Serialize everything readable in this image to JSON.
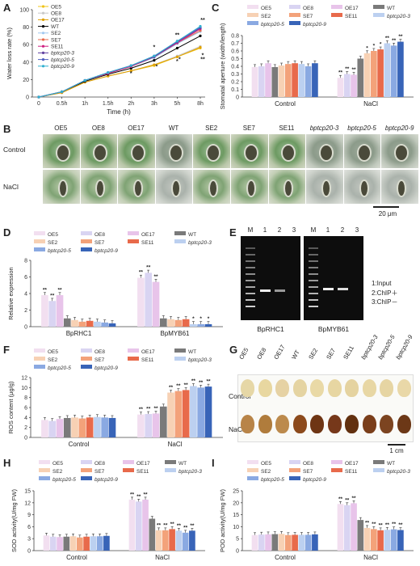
{
  "panels": {
    "A": "A",
    "B": "B",
    "C": "C",
    "D": "D",
    "E": "E",
    "F": "F",
    "G": "G",
    "H": "H",
    "I": "I"
  },
  "lines": [
    "OE5",
    "OE8",
    "OE17",
    "WT",
    "SE2",
    "SE7",
    "SE11",
    "bptcp20-3",
    "bptcp20-5",
    "bptcp20-9"
  ],
  "bars": [
    "OE5",
    "OE8",
    "OE17",
    "WT",
    "SE2",
    "SE7",
    "SE11",
    "bptcp20-3",
    "bptcp20-5",
    "bptcp20-9"
  ],
  "colors": {
    "OE5": "#f2dff0",
    "OE8": "#d9d4f2",
    "OE17": "#e8c4ea",
    "WT": "#7a7a7a",
    "SE2": "#f7d1b4",
    "SE7": "#f3a27a",
    "SE11": "#e86a4b",
    "bptcp20-3": "#bcd0f0",
    "bptcp20-5": "#8aa9e2",
    "bptcp20-9": "#3864b8"
  },
  "line_colors": {
    "OE5": "#f0c419",
    "OE8": "#c8c8c8",
    "OE17": "#e0a000",
    "WT": "#000000",
    "SE2": "#a0c8f0",
    "SE7": "#e86a4b",
    "SE11": "#d02080",
    "bptcp20-3": "#6040a0",
    "bptcp20-5": "#5060c0",
    "bptcp20-9": "#30b0d0"
  },
  "chart_data": [
    {
      "id": "A",
      "type": "line",
      "x": [
        "0",
        "0.5h",
        "1h",
        "1.5h",
        "2h",
        "3h",
        "5h",
        "8h"
      ],
      "xlabel": "Time (h)",
      "ylabel": "Water loss rate (%)",
      "ylim": [
        0,
        100
      ],
      "yticks": [
        "0",
        "20",
        "40",
        "60",
        "80",
        "100"
      ],
      "series": [
        {
          "name": "OE5",
          "values": [
            0,
            5,
            17,
            24,
            30,
            36,
            46,
            56
          ]
        },
        {
          "name": "OE8",
          "values": [
            0,
            5,
            17,
            24,
            30,
            37,
            47,
            58
          ]
        },
        {
          "name": "OE17",
          "values": [
            0,
            5,
            17,
            24,
            30,
            37,
            46,
            57
          ]
        },
        {
          "name": "WT",
          "values": [
            0,
            6,
            18,
            26,
            33,
            42,
            56,
            70
          ]
        },
        {
          "name": "SE2",
          "values": [
            0,
            6,
            19,
            27,
            35,
            45,
            61,
            75
          ]
        },
        {
          "name": "SE7",
          "values": [
            0,
            6,
            19,
            27,
            35,
            46,
            62,
            76
          ]
        },
        {
          "name": "SE11",
          "values": [
            0,
            6,
            19,
            27,
            35,
            46,
            62,
            78
          ]
        },
        {
          "name": "bptcp20-3",
          "values": [
            0,
            6,
            19,
            28,
            36,
            46,
            63,
            79
          ]
        },
        {
          "name": "bptcp20-5",
          "values": [
            0,
            6,
            19,
            28,
            36,
            47,
            64,
            80
          ]
        },
        {
          "name": "bptcp20-9",
          "values": [
            0,
            6,
            19,
            28,
            36,
            47,
            64,
            81
          ]
        }
      ],
      "annotations": [
        "**",
        "**",
        "**",
        "*",
        "*",
        "*",
        "*",
        "*",
        "*"
      ]
    },
    {
      "id": "C",
      "type": "bar",
      "categories": [
        "Control",
        "NaCl"
      ],
      "ylabel": "Stomatal aperture (width/length)",
      "ylim": [
        0,
        0.8
      ],
      "yticks": [
        "0",
        "0.1",
        "0.2",
        "0.3",
        "0.4",
        "0.5",
        "0.6",
        "0.7",
        "0.8"
      ],
      "values": [
        [
          0.39,
          0.4,
          0.44,
          0.39,
          0.41,
          0.43,
          0.44,
          0.43,
          0.4,
          0.44
        ],
        [
          0.25,
          0.3,
          0.29,
          0.5,
          0.57,
          0.6,
          0.62,
          0.7,
          0.67,
          0.72
        ]
      ],
      "stars": [
        [],
        [
          "**",
          "**",
          "**",
          "",
          "*",
          "*",
          "*",
          "**",
          "**",
          "**"
        ]
      ]
    },
    {
      "id": "D",
      "type": "bar",
      "categories": [
        "BpRHC1",
        "BpMYB61"
      ],
      "ylabel": "Relative expression",
      "ylim": [
        0,
        8
      ],
      "yticks": [
        "0",
        "2",
        "4",
        "6",
        "8"
      ],
      "values": [
        [
          3.8,
          3.1,
          3.8,
          1.0,
          0.8,
          0.6,
          0.7,
          0.6,
          0.5,
          0.4
        ],
        [
          5.9,
          6.5,
          5.4,
          1.0,
          0.9,
          0.8,
          0.9,
          0.3,
          0.3,
          0.3
        ]
      ],
      "stars": [
        [
          "**",
          "**",
          "**",
          "",
          "",
          "",
          "",
          "",
          "",
          ""
        ],
        [
          "**",
          "**",
          "**",
          "",
          "",
          "",
          "",
          "*",
          "*",
          "*"
        ]
      ]
    },
    {
      "id": "F",
      "type": "bar",
      "categories": [
        "Control",
        "NaCl"
      ],
      "ylabel": "ROS content (μg/g)",
      "ylim": [
        0,
        12
      ],
      "yticks": [
        "0",
        "2",
        "4",
        "6",
        "8",
        "10",
        "12"
      ],
      "values": [
        [
          3.5,
          3.3,
          3.7,
          3.9,
          4.0,
          3.8,
          4.0,
          4.1,
          4.0,
          3.9
        ],
        [
          4.6,
          4.7,
          4.8,
          6.2,
          9.0,
          9.3,
          9.5,
          10.3,
          10.0,
          10.2
        ]
      ],
      "stars": [
        [
          "",
          "",
          "",
          "",
          "",
          "",
          "",
          "",
          "",
          ""
        ],
        [
          "**",
          "**",
          "**",
          "",
          "**",
          "**",
          "**",
          "**",
          "**",
          "**"
        ]
      ]
    },
    {
      "id": "H",
      "type": "bar",
      "categories": [
        "Control",
        "NaCl"
      ],
      "ylabel": "SOD activity(U/mg FW)",
      "ylim": [
        0,
        15
      ],
      "yticks": [
        "0",
        "3",
        "6",
        "9",
        "12",
        "15"
      ],
      "values": [
        [
          3.8,
          3.5,
          3.4,
          3.5,
          3.6,
          3.3,
          3.5,
          3.6,
          3.6,
          3.7
        ],
        [
          12.8,
          12.3,
          12.8,
          8.0,
          5.1,
          5.1,
          5.4,
          5.0,
          4.5,
          5.0
        ]
      ],
      "stars": [
        [
          "",
          "",
          "",
          "",
          "",
          "",
          "",
          "",
          "",
          ""
        ],
        [
          "**",
          "**",
          "**",
          "",
          "**",
          "**",
          "**",
          "**",
          "**",
          "**"
        ]
      ]
    },
    {
      "id": "I",
      "type": "bar",
      "categories": [
        "Control",
        "NaCl"
      ],
      "ylabel": "POD activity(U/mg FW)",
      "ylim": [
        0,
        25
      ],
      "yticks": [
        "0",
        "5",
        "10",
        "15",
        "20",
        "25"
      ],
      "values": [
        [
          6.5,
          6.7,
          6.8,
          6.9,
          7.0,
          6.5,
          6.6,
          6.6,
          6.6,
          6.8
        ],
        [
          19.5,
          19.0,
          19.8,
          12.8,
          9.5,
          9.0,
          8.5,
          8.7,
          8.9,
          8.6
        ]
      ],
      "stars": [
        [
          "",
          "",
          "",
          "",
          "",
          "",
          "",
          "",
          "",
          ""
        ],
        [
          "**",
          "**",
          "**",
          "",
          "**",
          "**",
          "**",
          "**",
          "**",
          "**"
        ]
      ]
    }
  ],
  "panelB": {
    "columns": [
      "OE5",
      "OE8",
      "OE17",
      "WT",
      "SE2",
      "SE7",
      "SE11",
      "bptcp20-3",
      "bptcp20-5",
      "bptcp20-9"
    ],
    "rows": [
      "Control",
      "NaCl"
    ],
    "scale": "20 μm"
  },
  "panelE": {
    "lane_labels": [
      "M",
      "1",
      "2",
      "3"
    ],
    "legend": [
      "1:Input",
      "2:ChIP＋",
      "3:ChIP－"
    ],
    "genes": [
      "BpRHC1",
      "BpMYB61"
    ]
  },
  "panelG": {
    "columns": [
      "OE5",
      "OE8",
      "OE17",
      "WT",
      "SE2",
      "SE7",
      "SE11",
      "bptcp20-3",
      "bptcp20-5",
      "bptcp20-9"
    ],
    "rows": [
      "Control",
      "NaCl"
    ],
    "scale": "1 cm"
  }
}
